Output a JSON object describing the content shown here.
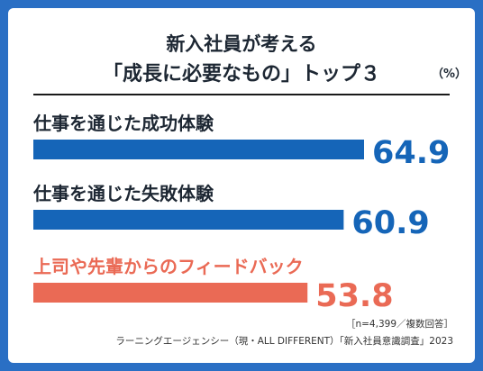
{
  "title_line1": "新入社員が考える",
  "title_line2": "「成長に必要なもの」トップ３",
  "unit": "（%）",
  "footnote_line1": "［n=4,399／複数回答］",
  "footnote_line2": "ラーニングエージェンシー（現・ALL DIFFERENT）「新入社員意識調査」2023",
  "colors": {
    "frame": "#2a6fc4",
    "bar_default": "#1565b8",
    "bar_highlight": "#ea6a55",
    "label_default": "#1d2733",
    "label_highlight": "#ea6a55"
  },
  "chart_data": {
    "type": "bar",
    "orientation": "horizontal",
    "categories": [
      "仕事を通じた成功体験",
      "仕事を通じた失敗体験",
      "上司や先輩からのフィードバック"
    ],
    "values": [
      64.9,
      60.9,
      53.8
    ],
    "value_labels": [
      "64.9",
      "60.9",
      "53.8"
    ],
    "highlight": [
      false,
      false,
      true
    ],
    "unit": "%"
  }
}
